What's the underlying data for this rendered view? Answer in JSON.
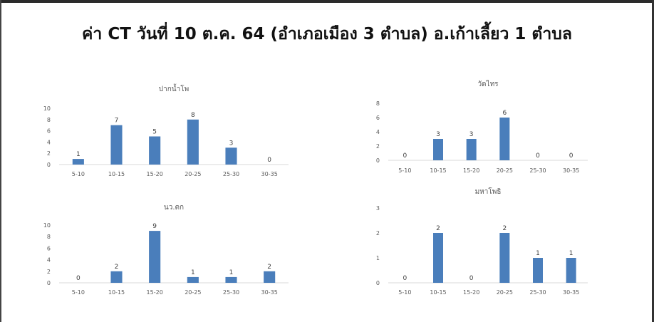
{
  "title": "ค่า CT  วันที่ 10 ต.ค. 64 (อำเภอเมือง 3 ตำบล) อ.เก้าเลี้ยว 1 ตำบล",
  "colors": {
    "bar": "#4a7ebb",
    "grid": "#d9d9d9",
    "text": "#595959"
  },
  "chart_data": [
    {
      "type": "bar",
      "title": "ปากน้ำโพ",
      "categories": [
        "5-10",
        "10-15",
        "15-20",
        "20-25",
        "25-30",
        "30-35"
      ],
      "values": [
        1,
        7,
        5,
        8,
        3,
        0
      ],
      "yticks": [
        0,
        2,
        4,
        6,
        8,
        10
      ],
      "ylim": [
        0,
        10
      ],
      "grid": false
    },
    {
      "type": "bar",
      "title": "วัดไทร",
      "categories": [
        "5-10",
        "10-15",
        "15-20",
        "20-25",
        "25-30",
        "30-35"
      ],
      "values": [
        0,
        3,
        3,
        6,
        0,
        0
      ],
      "yticks": [
        0,
        2,
        4,
        6,
        8
      ],
      "ylim": [
        0,
        8
      ],
      "grid": false
    },
    {
      "type": "bar",
      "title": "นว.ตก",
      "categories": [
        "5-10",
        "10-15",
        "15-20",
        "20-25",
        "25-30",
        "30-35"
      ],
      "values": [
        0,
        2,
        9,
        1,
        1,
        2
      ],
      "yticks": [
        0,
        2,
        4,
        6,
        8,
        10
      ],
      "ylim": [
        0,
        10
      ],
      "grid": false
    },
    {
      "type": "bar",
      "title": "มหาโพธิ",
      "categories": [
        "5-10",
        "10-15",
        "15-20",
        "20-25",
        "25-30",
        "30-35"
      ],
      "values": [
        0,
        2,
        0,
        2,
        1,
        1
      ],
      "yticks": [
        0,
        1,
        2,
        3
      ],
      "ylim": [
        0,
        3
      ],
      "grid": false
    }
  ]
}
